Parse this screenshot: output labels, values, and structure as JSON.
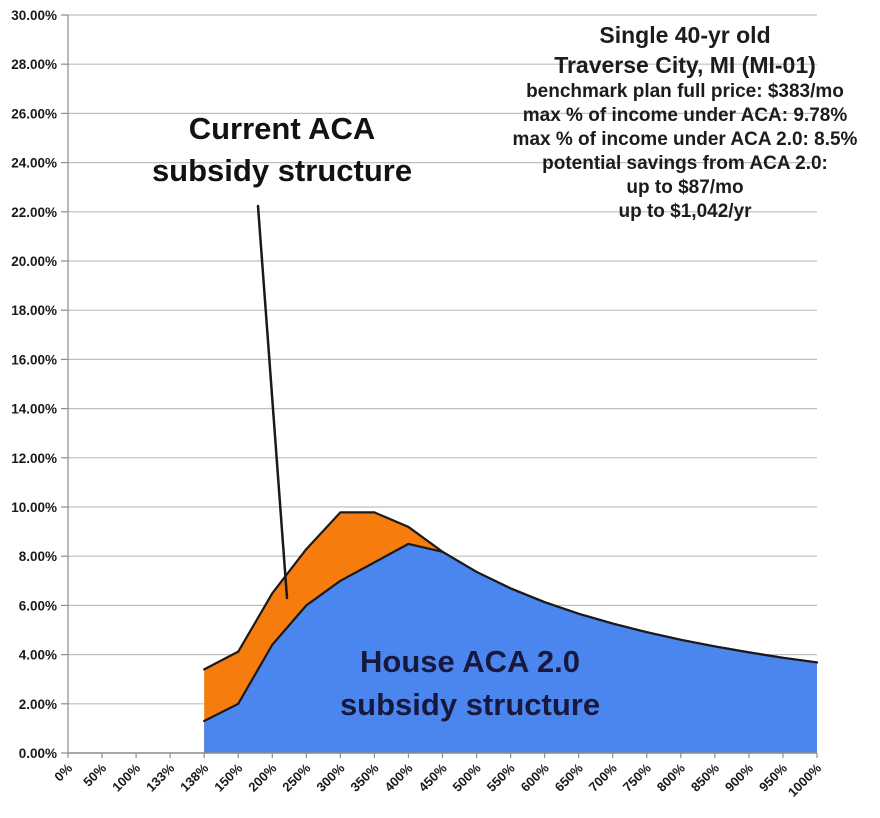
{
  "chart_data": {
    "type": "area",
    "categories": [
      "0%",
      "50%",
      "100%",
      "133%",
      "138%",
      "150%",
      "200%",
      "250%",
      "300%",
      "350%",
      "400%",
      "450%",
      "500%",
      "550%",
      "600%",
      "650%",
      "700%",
      "750%",
      "800%",
      "850%",
      "900%",
      "950%",
      "1000%"
    ],
    "xlabel": "",
    "ylabel": "",
    "ylim": [
      0,
      30
    ],
    "ytick_step": 2,
    "ytick_labels": [
      "0.00%",
      "2.00%",
      "4.00%",
      "6.00%",
      "8.00%",
      "10.00%",
      "12.00%",
      "14.00%",
      "16.00%",
      "18.00%",
      "20.00%",
      "22.00%",
      "24.00%",
      "26.00%",
      "28.00%",
      "30.00%"
    ],
    "grid": true,
    "legend_position": "none (labels drawn inside chart)",
    "series": [
      {
        "name": "Current ACA subsidy structure",
        "color": "#F67D0D",
        "values": [
          null,
          null,
          null,
          null,
          3.4,
          4.12,
          6.49,
          8.29,
          9.78,
          9.78,
          9.19,
          8.18,
          7.36,
          6.69,
          6.13,
          5.66,
          5.26,
          4.91,
          4.6,
          4.33,
          4.09,
          3.87,
          3.68
        ]
      },
      {
        "name": "House ACA 2.0 subsidy structure",
        "color": "#4B86EF",
        "values": [
          null,
          null,
          null,
          null,
          1.3,
          2.0,
          4.4,
          6.0,
          7.0,
          7.75,
          8.5,
          8.18,
          7.36,
          6.69,
          6.13,
          5.66,
          5.26,
          4.91,
          4.6,
          4.33,
          4.09,
          3.87,
          3.68
        ]
      }
    ],
    "colors": {
      "grid": "#bfbfbf",
      "axis": "#8c8c8c",
      "outline": "#1a1a1a"
    }
  },
  "labels": {
    "current_aca_line1": "Current ACA",
    "current_aca_line2": "subsidy structure",
    "house_line1": "House ACA 2.0",
    "house_line2": "subsidy structure"
  },
  "annotation": {
    "lines": [
      "Single 40-yr old",
      "Traverse City, MI (MI-01)",
      "benchmark plan full price: $383/mo",
      "max % of income under ACA: 9.78%",
      "max % of income under ACA 2.0: 8.5%",
      "potential savings from ACA 2.0:",
      "up to $87/mo",
      "up to $1,042/yr"
    ]
  }
}
